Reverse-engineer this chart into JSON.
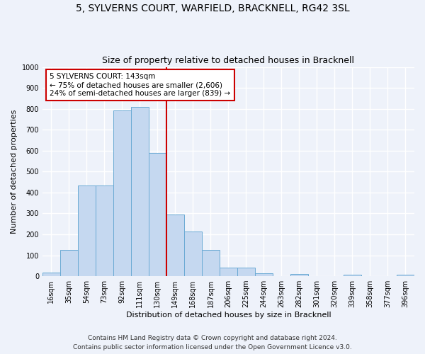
{
  "title_line1": "5, SYLVERNS COURT, WARFIELD, BRACKNELL, RG42 3SL",
  "title_line2": "Size of property relative to detached houses in Bracknell",
  "xlabel": "Distribution of detached houses by size in Bracknell",
  "ylabel": "Number of detached properties",
  "categories": [
    "16sqm",
    "35sqm",
    "54sqm",
    "73sqm",
    "92sqm",
    "111sqm",
    "130sqm",
    "149sqm",
    "168sqm",
    "187sqm",
    "206sqm",
    "225sqm",
    "244sqm",
    "263sqm",
    "282sqm",
    "301sqm",
    "320sqm",
    "339sqm",
    "358sqm",
    "377sqm",
    "396sqm"
  ],
  "values": [
    18,
    125,
    435,
    435,
    793,
    808,
    590,
    293,
    212,
    125,
    40,
    40,
    13,
    0,
    10,
    0,
    0,
    8,
    0,
    0,
    8
  ],
  "bar_color": "#c5d8f0",
  "bar_edge_color": "#6aaad4",
  "vline_x": 6.5,
  "vline_color": "#cc0000",
  "annotation_text": "5 SYLVERNS COURT: 143sqm\n← 75% of detached houses are smaller (2,606)\n24% of semi-detached houses are larger (839) →",
  "annotation_box_color": "#ffffff",
  "annotation_box_edge": "#cc0000",
  "ylim": [
    0,
    1000
  ],
  "yticks": [
    0,
    100,
    200,
    300,
    400,
    500,
    600,
    700,
    800,
    900,
    1000
  ],
  "footer_line1": "Contains HM Land Registry data © Crown copyright and database right 2024.",
  "footer_line2": "Contains public sector information licensed under the Open Government Licence v3.0.",
  "background_color": "#eef2fa",
  "grid_color": "#ffffff",
  "title1_fontsize": 10,
  "title2_fontsize": 9,
  "tick_fontsize": 7,
  "ylabel_fontsize": 8,
  "xlabel_fontsize": 8,
  "footer_fontsize": 6.5,
  "annot_fontsize": 7.5
}
